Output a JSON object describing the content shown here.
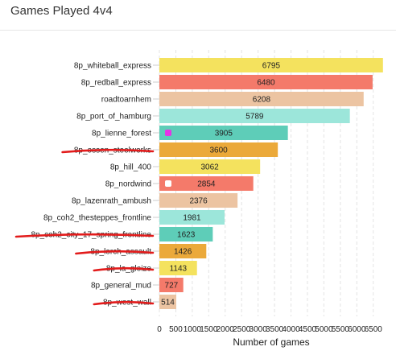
{
  "header": {
    "title": "Games Played 4v4"
  },
  "chart_data": {
    "type": "bar",
    "orientation": "horizontal",
    "categories": [
      "8p_whiteball_express",
      "8p_redball_express",
      "roadtoarnhem",
      "8p_port_of_hamburg",
      "8p_lienne_forest",
      "8p_essen_steelworks",
      "8p_hill_400",
      "8p_nordwind",
      "8p_lazenrath_ambush",
      "8p_coh2_thesteppes_frontline",
      "8p_coh2_city_17_spring_frontline",
      "8p_lorch_assault",
      "8p_la_gleize",
      "8p_general_mud",
      "8p_west_wall"
    ],
    "values": [
      6795,
      6480,
      6208,
      5789,
      3905,
      3600,
      3062,
      2854,
      2376,
      1981,
      1623,
      1426,
      1143,
      727,
      514
    ],
    "colors": [
      "#f4e25e",
      "#f47a6a",
      "#ecc4a2",
      "#9ce6da",
      "#5ecdb8",
      "#eba93a",
      "#f4e25e",
      "#f47a6a",
      "#ecc4a2",
      "#9ce6da",
      "#5ecdb8",
      "#eba93a",
      "#f4e25e",
      "#f47a6a",
      "#ecc4a2"
    ],
    "strikethrough_categories": [
      "8p_essen_steelworks",
      "8p_coh2_city_17_spring_frontline",
      "8p_lorch_assault",
      "8p_la_gleize",
      "8p_west_wall"
    ],
    "markers": [
      {
        "category": "8p_lienne_forest",
        "color": "#e633e6"
      },
      {
        "category": "8p_nordwind",
        "color": "#ffffff"
      }
    ],
    "xticks": [
      "0",
      "500",
      "1000",
      "1500",
      "2000",
      "2500",
      "3000",
      "3500",
      "4000",
      "4500",
      "5000",
      "5500",
      "6000",
      "6500"
    ],
    "xlim": [
      0,
      6800
    ],
    "xlabel": "Number of games",
    "ylabel": "",
    "grid": true
  }
}
